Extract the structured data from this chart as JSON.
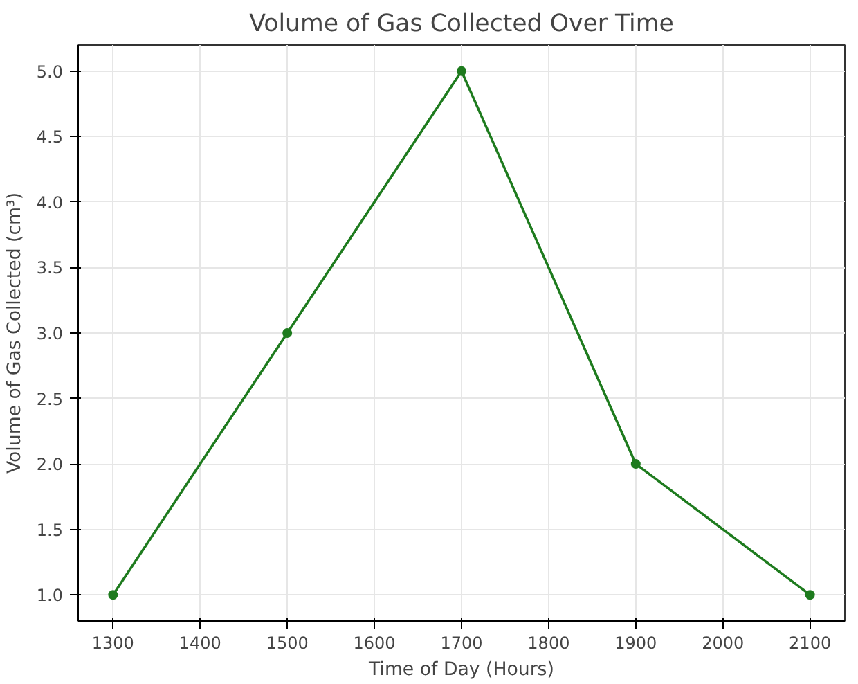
{
  "chart_data": {
    "type": "line",
    "title": "Volume of Gas Collected Over Time",
    "xlabel": "Time of Day (Hours)",
    "ylabel": "Volume of Gas Collected (cm³)",
    "x": [
      1300,
      1500,
      1700,
      1900,
      2100
    ],
    "series": [
      {
        "color": "#1e7b1e",
        "values": [
          1,
          3,
          5,
          2,
          1
        ]
      }
    ],
    "xlim": [
      1260,
      2140
    ],
    "ylim": [
      0.8,
      5.2
    ],
    "xticks": [
      1300,
      1400,
      1500,
      1600,
      1700,
      1800,
      1900,
      2000,
      2100
    ],
    "yticks": [
      {
        "value": 1,
        "label": "1.0"
      },
      1.5,
      {
        "value": 2,
        "label": "2.0"
      },
      2.5,
      {
        "value": 3,
        "label": "3.0"
      },
      3.5,
      {
        "value": 4,
        "label": "4.0"
      },
      4.5,
      {
        "value": 5,
        "label": "5.0"
      }
    ],
    "grid": true,
    "marker": "circle",
    "line_style": "solid"
  }
}
